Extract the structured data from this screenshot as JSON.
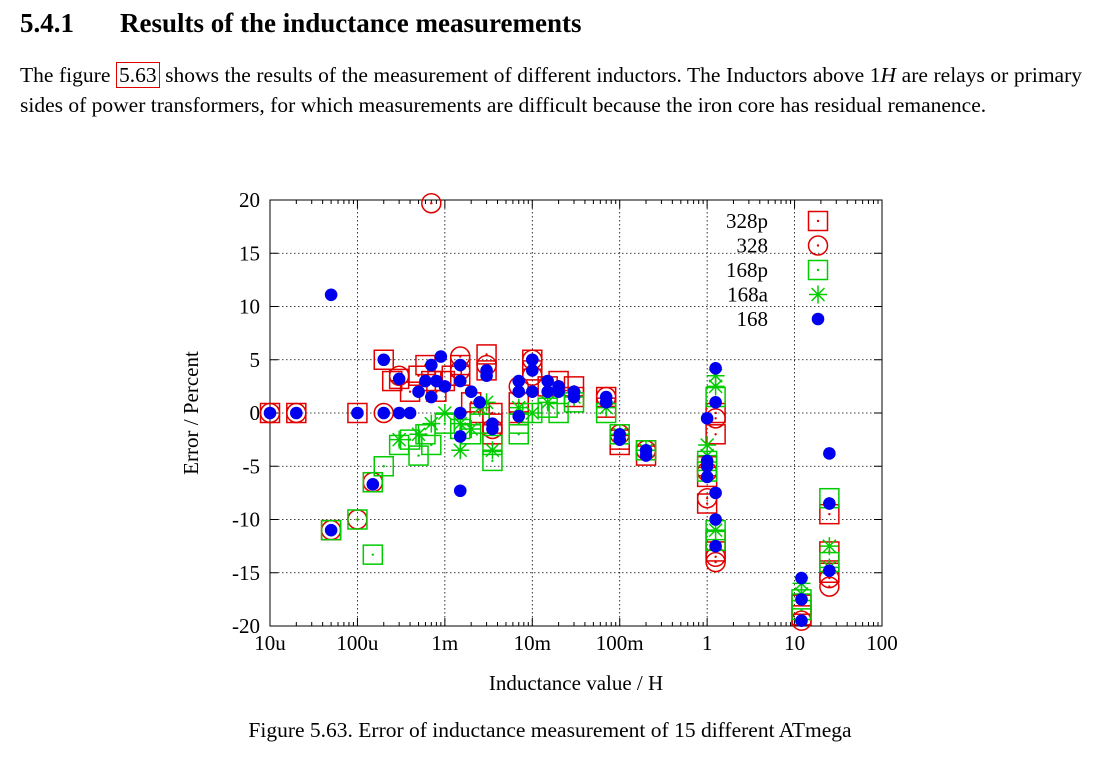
{
  "section": {
    "number": "5.4.1",
    "title": "Results of the inductance measurements"
  },
  "paragraph": {
    "part1": "The figure ",
    "ref": "5.63",
    "part2": " shows the results of the measurement of different inductors.  The Inductors above 1",
    "unit": "H",
    "part3": " are relays or primary sides of power transformers, for which measurements are difficult because the iron core has residual remanence."
  },
  "caption": "Figure 5.63. Error of inductance measurement of 15 different ATmega",
  "colors": {
    "red": "#e00000",
    "green": "#00cc00",
    "blue": "#0000ee"
  },
  "chart_data": {
    "type": "scatter",
    "xlabel": "Inductance value / H",
    "ylabel": "Error / Percent",
    "x_scale": "log",
    "xlim": [
      1e-05,
      100
    ],
    "ylim": [
      -20,
      20
    ],
    "x_ticks": [
      {
        "v": 1e-05,
        "label": "10u"
      },
      {
        "v": 0.0001,
        "label": "100u"
      },
      {
        "v": 0.001,
        "label": "1m"
      },
      {
        "v": 0.01,
        "label": "10m"
      },
      {
        "v": 0.1,
        "label": "100m"
      },
      {
        "v": 1,
        "label": "1"
      },
      {
        "v": 10,
        "label": "10"
      },
      {
        "v": 100,
        "label": "100"
      }
    ],
    "y_ticks": [
      {
        "v": 20,
        "label": "20"
      },
      {
        "v": 15,
        "label": "15"
      },
      {
        "v": 10,
        "label": "10"
      },
      {
        "v": 5,
        "label": "5"
      },
      {
        "v": 0,
        "label": "0"
      },
      {
        "v": -5,
        "label": "-5"
      },
      {
        "v": -10,
        "label": "-10"
      },
      {
        "v": -15,
        "label": "-15"
      },
      {
        "v": -20,
        "label": "-20"
      }
    ],
    "grid": true,
    "legend_position": "top-right",
    "series": [
      {
        "name": "328p",
        "marker": "square-dot",
        "color": "#e00000",
        "points": [
          [
            1e-05,
            0
          ],
          [
            2e-05,
            0
          ],
          [
            5e-05,
            -11
          ],
          [
            0.0001,
            0
          ],
          [
            0.00015,
            -6.5
          ],
          [
            0.0002,
            5
          ],
          [
            0.00025,
            3
          ],
          [
            0.0003,
            3.2
          ],
          [
            0.0004,
            2
          ],
          [
            0.0005,
            3.5
          ],
          [
            0.0006,
            4.5
          ],
          [
            0.0007,
            3
          ],
          [
            0.0008,
            2
          ],
          [
            0.001,
            3
          ],
          [
            0.0012,
            3.5
          ],
          [
            0.0015,
            4.5
          ],
          [
            0.0015,
            3.5
          ],
          [
            0.002,
            1
          ],
          [
            0.0025,
            0
          ],
          [
            0.003,
            5.5
          ],
          [
            0.003,
            4
          ],
          [
            0.0035,
            -1
          ],
          [
            0.0035,
            0
          ],
          [
            0.0035,
            -2
          ],
          [
            0.007,
            1
          ],
          [
            0.007,
            0
          ],
          [
            0.01,
            5
          ],
          [
            0.01,
            4
          ],
          [
            0.015,
            2.5
          ],
          [
            0.02,
            3
          ],
          [
            0.03,
            2.5
          ],
          [
            0.03,
            1.5
          ],
          [
            0.07,
            1.5
          ],
          [
            0.07,
            0.5
          ],
          [
            0.1,
            -2.5
          ],
          [
            0.1,
            -3
          ],
          [
            0.2,
            -3.5
          ],
          [
            0.2,
            -4
          ],
          [
            1,
            -5
          ],
          [
            1,
            -8.5
          ],
          [
            1,
            -6
          ],
          [
            1.25,
            0
          ],
          [
            1.25,
            -2
          ],
          [
            1.25,
            -12
          ],
          [
            1.25,
            -13
          ],
          [
            12,
            -18
          ],
          [
            12,
            -19
          ],
          [
            25,
            -9.5
          ],
          [
            25,
            -13
          ],
          [
            25,
            -15
          ]
        ]
      },
      {
        "name": "328",
        "marker": "circle-dot",
        "color": "#e00000",
        "points": [
          [
            1e-05,
            0
          ],
          [
            2e-05,
            0
          ],
          [
            5e-05,
            -11
          ],
          [
            0.0001,
            -10
          ],
          [
            0.00015,
            -6.5
          ],
          [
            0.0002,
            0
          ],
          [
            0.0003,
            3.5
          ],
          [
            0.0007,
            19.7
          ],
          [
            0.0015,
            5.3
          ],
          [
            0.0015,
            4
          ],
          [
            0.003,
            4.5
          ],
          [
            0.0035,
            -1.5
          ],
          [
            0.007,
            2.5
          ],
          [
            0.01,
            5
          ],
          [
            0.01,
            3.5
          ],
          [
            0.07,
            1.5
          ],
          [
            0.1,
            -2
          ],
          [
            0.2,
            -3.5
          ],
          [
            1,
            -8
          ],
          [
            1,
            -5.5
          ],
          [
            1.25,
            -0.5
          ],
          [
            1.25,
            -13.5
          ],
          [
            1.25,
            -14
          ],
          [
            12,
            -19.5
          ],
          [
            25,
            -15.5
          ],
          [
            25,
            -16.3
          ]
        ]
      },
      {
        "name": "168p",
        "marker": "square-dot",
        "color": "#00cc00",
        "points": [
          [
            5e-05,
            -11
          ],
          [
            0.0001,
            -10
          ],
          [
            0.00015,
            -13.3
          ],
          [
            0.00015,
            -6.5
          ],
          [
            0.0002,
            -5
          ],
          [
            0.0003,
            -3
          ],
          [
            0.0004,
            -2.5
          ],
          [
            0.0005,
            -4
          ],
          [
            0.0006,
            -2
          ],
          [
            0.0007,
            -3
          ],
          [
            0.001,
            -1
          ],
          [
            0.0015,
            -1.5
          ],
          [
            0.002,
            -2
          ],
          [
            0.0025,
            -1
          ],
          [
            0.0035,
            -4.5
          ],
          [
            0.0035,
            -3
          ],
          [
            0.007,
            -2
          ],
          [
            0.007,
            -1
          ],
          [
            0.01,
            0
          ],
          [
            0.015,
            0.5
          ],
          [
            0.02,
            0
          ],
          [
            0.03,
            1
          ],
          [
            0.07,
            0
          ],
          [
            0.1,
            -2
          ],
          [
            0.2,
            -3.5
          ],
          [
            1,
            -5.5
          ],
          [
            1,
            -4.5
          ],
          [
            1.25,
            1.5
          ],
          [
            1.25,
            -11
          ],
          [
            1.25,
            -12
          ],
          [
            12,
            -17.5
          ],
          [
            12,
            -18.5
          ],
          [
            25,
            -8
          ],
          [
            25,
            -14
          ]
        ]
      },
      {
        "name": "168a",
        "marker": "star",
        "color": "#00cc00",
        "points": [
          [
            0.0003,
            -2.5
          ],
          [
            0.0005,
            -2
          ],
          [
            0.0007,
            -1
          ],
          [
            0.001,
            0
          ],
          [
            0.0015,
            -3.5
          ],
          [
            0.0015,
            -1
          ],
          [
            0.002,
            -1.5
          ],
          [
            0.0025,
            0.5
          ],
          [
            0.003,
            1
          ],
          [
            0.0035,
            -3.5
          ],
          [
            0.007,
            0.5
          ],
          [
            0.01,
            0
          ],
          [
            0.015,
            1
          ],
          [
            0.03,
            1.5
          ],
          [
            0.07,
            0.5
          ],
          [
            0.1,
            -2
          ],
          [
            0.2,
            -3.5
          ],
          [
            1,
            -3
          ],
          [
            1,
            -4
          ],
          [
            1.25,
            3.5
          ],
          [
            1.25,
            2.5
          ],
          [
            1.25,
            -11
          ],
          [
            12,
            -16
          ],
          [
            12,
            -17
          ],
          [
            25,
            -12.5
          ],
          [
            25,
            -14.5
          ]
        ]
      },
      {
        "name": "168",
        "marker": "filled-circle",
        "color": "#0000ee",
        "points": [
          [
            1e-05,
            0
          ],
          [
            2e-05,
            0
          ],
          [
            5e-05,
            11.1
          ],
          [
            5e-05,
            -11
          ],
          [
            0.0001,
            0
          ],
          [
            0.00015,
            -6.7
          ],
          [
            0.0002,
            5
          ],
          [
            0.0002,
            0
          ],
          [
            0.0003,
            3.2
          ],
          [
            0.0003,
            0
          ],
          [
            0.0004,
            0
          ],
          [
            0.0005,
            2
          ],
          [
            0.0006,
            3
          ],
          [
            0.0007,
            4.5
          ],
          [
            0.0007,
            1.5
          ],
          [
            0.0008,
            3
          ],
          [
            0.0009,
            5.3
          ],
          [
            0.001,
            2.5
          ],
          [
            0.0015,
            4.5
          ],
          [
            0.0015,
            3
          ],
          [
            0.0015,
            -7.3
          ],
          [
            0.0015,
            -2.2
          ],
          [
            0.0015,
            0
          ],
          [
            0.002,
            2
          ],
          [
            0.0025,
            1
          ],
          [
            0.003,
            4
          ],
          [
            0.003,
            3.5
          ],
          [
            0.0035,
            -1
          ],
          [
            0.0035,
            -1.5
          ],
          [
            0.007,
            3
          ],
          [
            0.007,
            2
          ],
          [
            0.007,
            -0.3
          ],
          [
            0.01,
            5
          ],
          [
            0.01,
            4
          ],
          [
            0.01,
            2
          ],
          [
            0.015,
            3
          ],
          [
            0.015,
            2
          ],
          [
            0.02,
            2.5
          ],
          [
            0.02,
            2
          ],
          [
            0.03,
            2
          ],
          [
            0.03,
            1.5
          ],
          [
            0.07,
            1.5
          ],
          [
            0.07,
            1
          ],
          [
            0.1,
            -2
          ],
          [
            0.1,
            -2.5
          ],
          [
            0.2,
            -3.5
          ],
          [
            0.2,
            -4
          ],
          [
            1,
            -0.5
          ],
          [
            1,
            -4.5
          ],
          [
            1,
            -6
          ],
          [
            1,
            -5
          ],
          [
            1.25,
            4.2
          ],
          [
            1.25,
            1
          ],
          [
            1.25,
            -7.5
          ],
          [
            1.25,
            -10
          ],
          [
            1.25,
            -12.5
          ],
          [
            12,
            -15.5
          ],
          [
            12,
            -17.5
          ],
          [
            12,
            -19.5
          ],
          [
            25,
            -3.8
          ],
          [
            25,
            -8.5
          ],
          [
            25,
            -14.8
          ]
        ]
      }
    ]
  }
}
